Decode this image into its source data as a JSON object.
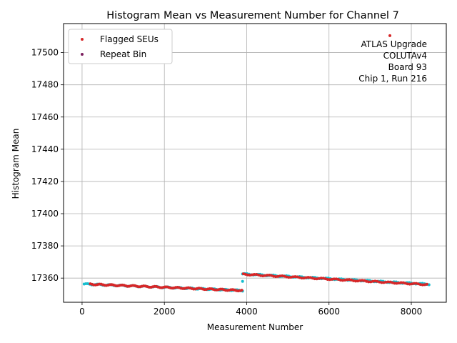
{
  "chart_data": {
    "type": "scatter",
    "title": "Histogram Mean vs Measurement Number for Channel 7",
    "xlabel": "Measurement Number",
    "ylabel": "Histogram Mean",
    "xlim": [
      -450,
      8850
    ],
    "ylim": [
      17345,
      17518
    ],
    "xticks": [
      0,
      2000,
      4000,
      6000,
      8000
    ],
    "xtick_labels": [
      "0",
      "2000",
      "4000",
      "6000",
      "8000"
    ],
    "yticks": [
      17360,
      17380,
      17400,
      17420,
      17440,
      17460,
      17480,
      17500
    ],
    "ytick_labels": [
      "17360",
      "17380",
      "17400",
      "17420",
      "17440",
      "17460",
      "17480",
      "17500"
    ],
    "grid": true,
    "legend_placement": "top-left",
    "legend": [
      {
        "label": "Flagged SEUs",
        "color": "#d62728"
      },
      {
        "label": "Repeat Bin",
        "color": "#7b1f5e"
      }
    ],
    "annotation_lines": [
      "ATLAS Upgrade",
      "COLUTAv4",
      "Board 93",
      "Chip 1, Run 216"
    ],
    "series": [
      {
        "color": "#17becf",
        "segments": [
          {
            "x0": 50,
            "x1": 3900,
            "y0": 17356.3,
            "y1": 17352.3
          },
          {
            "x0": 3900,
            "x1": 8430,
            "y0": 17362.6,
            "y1": 17356.2
          }
        ],
        "outliers": [
          {
            "x": 3900,
            "y": 17358.0
          }
        ]
      },
      {
        "color": "#d62728",
        "segments": [
          {
            "x0": 200,
            "x1": 3880,
            "y0": 17356.2,
            "y1": 17352.3
          },
          {
            "x0": 3920,
            "x1": 8380,
            "y0": 17362.4,
            "y1": 17356.0
          }
        ],
        "outliers": [
          {
            "x": 7480,
            "y": 17510.5
          }
        ]
      }
    ]
  }
}
